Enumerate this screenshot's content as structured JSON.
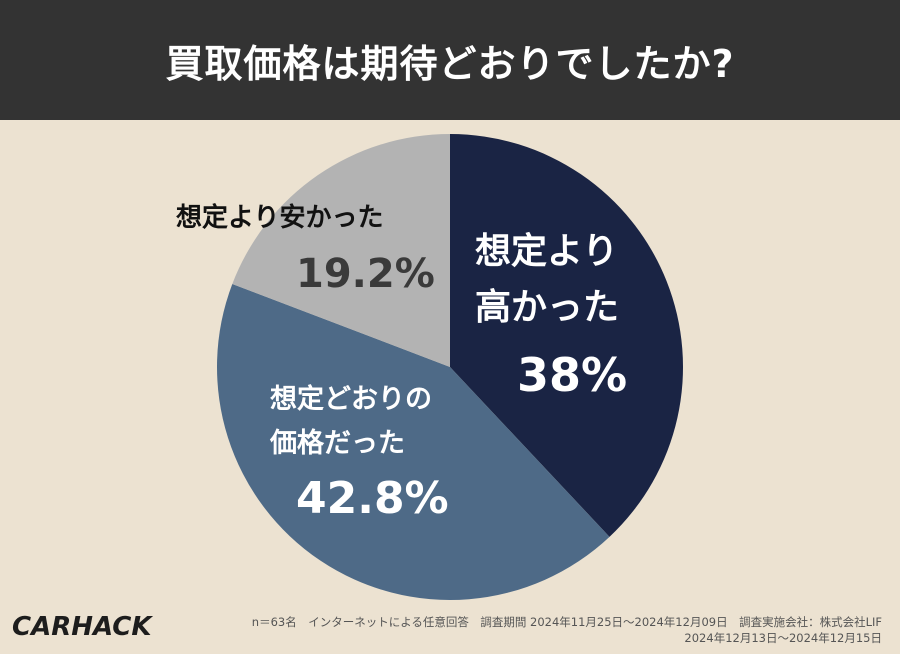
{
  "header": {
    "title": "買取価格は期待どおりでしたか?"
  },
  "chart_data": {
    "type": "pie",
    "title": "買取価格は期待どおりでしたか?",
    "slices": [
      {
        "category": "想定より高かった",
        "value": 38,
        "label": "38%",
        "color": "#1a2444"
      },
      {
        "category": "想定どおりの価格だった",
        "value": 42.8,
        "label": "42.8%",
        "color": "#4e6a87"
      },
      {
        "category": "想定より安かった",
        "value": 19.2,
        "label": "19.2%",
        "color": "#b3b3b3"
      }
    ],
    "start_angle": "12 o'clock",
    "direction": "clockwise"
  },
  "labels": {
    "high_line1": "想定より",
    "high_line2": "高かった",
    "high_pct": "38%",
    "match_line1": "想定どおりの",
    "match_line2": "価格だった",
    "match_pct": "42.8%",
    "low_line1": "想定より安かった",
    "low_pct": "19.2%"
  },
  "footer": {
    "logo": "CARHACK",
    "note_line1": "n＝63名　インターネットによる任意回答　調査期間 2024年11月25日～2024年12月09日　調査実施会社：株式会社LIF",
    "note_line2": "2024年12月13日～2024年12月15日"
  }
}
